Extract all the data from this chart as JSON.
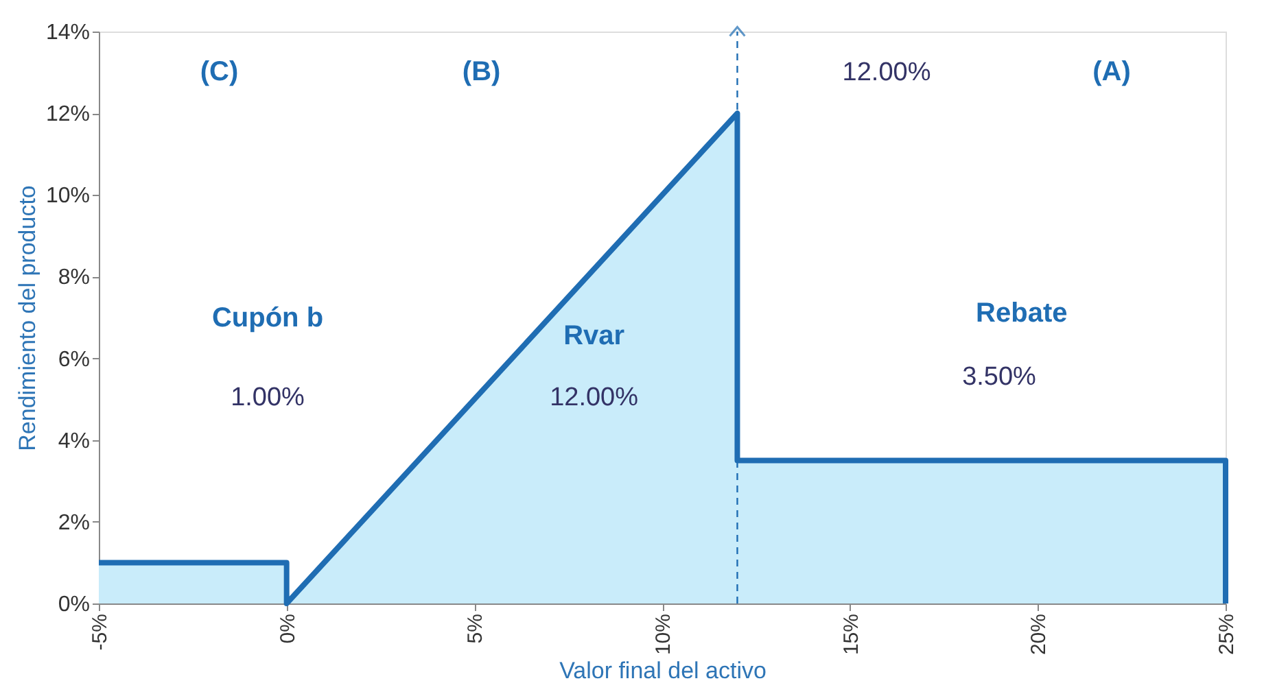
{
  "chart_data": {
    "type": "area",
    "xlabel": "Valor final del activo",
    "ylabel": "Rendimiento del producto",
    "series": [
      {
        "x": [
          -5,
          0,
          0,
          12,
          12,
          25,
          25
        ],
        "values": [
          1,
          1,
          0,
          12,
          3.5,
          3.5,
          0
        ],
        "color": "#1f6db3"
      }
    ],
    "xlim": [
      -5,
      25
    ],
    "xticks": [
      {
        "value": -5,
        "label": "-5%"
      },
      {
        "value": 0,
        "label": "0%"
      },
      {
        "value": 5,
        "label": "5%"
      },
      {
        "value": 10,
        "label": "10%"
      },
      {
        "value": 15,
        "label": "15%"
      },
      {
        "value": 20,
        "label": "20%"
      },
      {
        "value": 25,
        "label": "25%"
      }
    ],
    "ylim": [
      0,
      14
    ],
    "yticks": [
      {
        "value": 0,
        "label": "0%"
      },
      {
        "value": 2,
        "label": "2%"
      },
      {
        "value": 4,
        "label": "4%"
      },
      {
        "value": 6,
        "label": "6%"
      },
      {
        "value": 8,
        "label": "8%"
      },
      {
        "value": 10,
        "label": "10%"
      },
      {
        "value": 12,
        "label": "12%"
      },
      {
        "value": 14,
        "label": "14%"
      }
    ],
    "ref_lines": [
      {
        "axis": "x",
        "value": 12,
        "label": null,
        "line_style": "dashed",
        "color": "#1f6db3"
      }
    ],
    "annotations": [
      "(C)",
      "(B)",
      "(A)",
      "12.00%",
      "Cupón b",
      "1.00%",
      "Rvar",
      "12.00%",
      "Rebate",
      "3.50%"
    ],
    "grid": false
  }
}
